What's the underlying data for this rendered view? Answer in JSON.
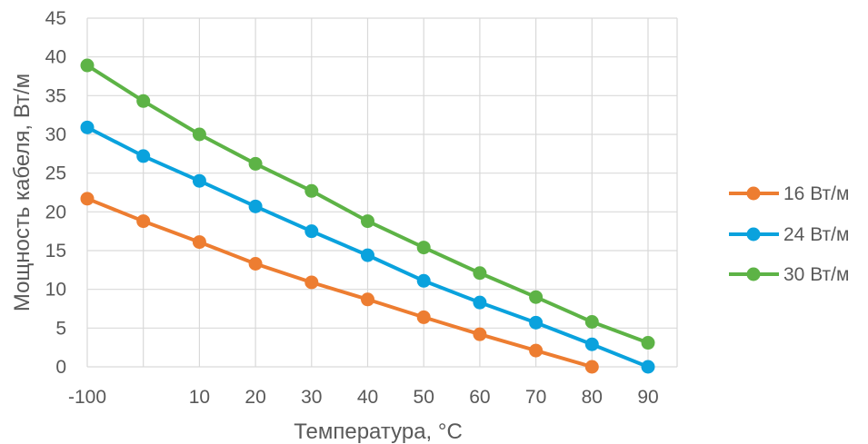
{
  "chart_data": {
    "type": "line",
    "xlabel": "Температура, °C",
    "ylabel": "Мощность кабеля, Вт/м",
    "categories": [
      "-100",
      "",
      "10",
      "20",
      "30",
      "40",
      "50",
      "60",
      "70",
      "80",
      "90"
    ],
    "ylim": [
      0,
      45
    ],
    "yticks": [
      "0",
      "5",
      "10",
      "15",
      "20",
      "25",
      "30",
      "35",
      "40",
      "45"
    ],
    "grid": true,
    "legend_position": "right",
    "series": [
      {
        "name": "16 Вт/м",
        "color": "#ED7D31",
        "values": [
          21.7,
          18.8,
          16.1,
          13.3,
          10.9,
          8.7,
          6.4,
          4.2,
          2.1,
          0,
          null
        ]
      },
      {
        "name": "24 Вт/м",
        "color": "#0AA2DD",
        "values": [
          30.9,
          27.2,
          24.0,
          20.7,
          17.5,
          14.4,
          11.1,
          8.3,
          5.7,
          2.9,
          0
        ]
      },
      {
        "name": "30 Вт/м",
        "color": "#5DB346",
        "values": [
          38.9,
          34.3,
          30.0,
          26.2,
          22.7,
          18.8,
          15.4,
          12.1,
          9.0,
          5.8,
          3.1
        ]
      }
    ]
  }
}
